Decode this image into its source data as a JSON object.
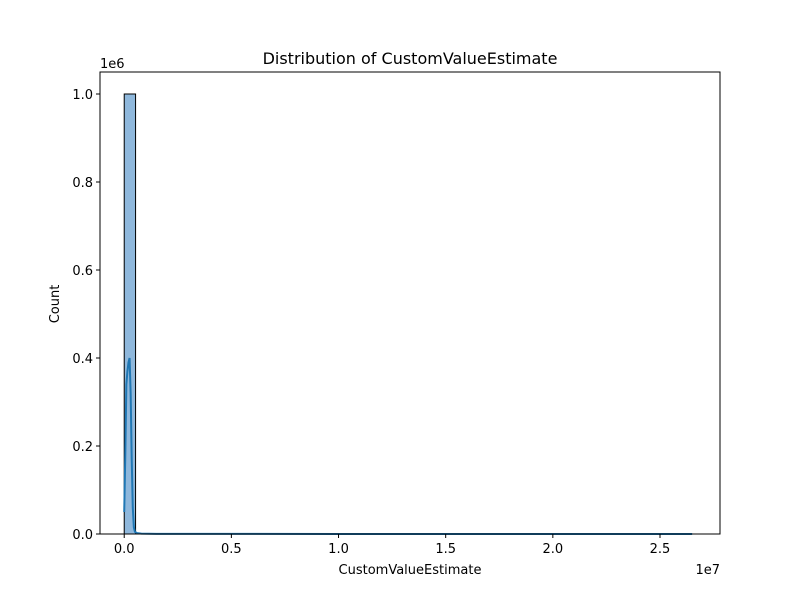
{
  "chart_data": {
    "type": "bar",
    "subtype": "histogram-with-kde",
    "title": "Distribution of CustomValueEstimate",
    "xlabel": "CustomValueEstimate",
    "ylabel": "Count",
    "x_offset_label": "1e7",
    "y_offset_label": "1e6",
    "xlim": [
      -1130000,
      27800000
    ],
    "ylim": [
      0,
      1050000
    ],
    "x_ticks": [
      0,
      5000000,
      10000000,
      15000000,
      20000000,
      25000000
    ],
    "x_tick_labels": [
      "0.0",
      "0.5",
      "1.0",
      "1.5",
      "2.0",
      "2.5"
    ],
    "y_ticks": [
      0,
      200000,
      400000,
      600000,
      800000,
      1000000
    ],
    "y_tick_labels": [
      "0.0",
      "0.2",
      "0.4",
      "0.6",
      "0.8",
      "1.0"
    ],
    "bins": [
      {
        "x0": 0,
        "x1": 530000,
        "count": 1000000
      }
    ],
    "kde": {
      "x": [
        0,
        50000,
        100000,
        150000,
        200000,
        250000,
        300000,
        350000,
        400000,
        450000,
        500000,
        600000,
        800000,
        1500000,
        5000000,
        10000000,
        15000000,
        20000000,
        26500000
      ],
      "y": [
        50000,
        180000,
        340000,
        370000,
        390000,
        400000,
        320000,
        170000,
        60000,
        15000,
        5000,
        2000,
        800,
        300,
        150,
        100,
        60,
        40,
        20
      ]
    },
    "grid": false,
    "colors": {
      "bar_fill": "#8fb8dc",
      "bar_edge": "#000000",
      "kde_line": "#1f77b4"
    }
  }
}
